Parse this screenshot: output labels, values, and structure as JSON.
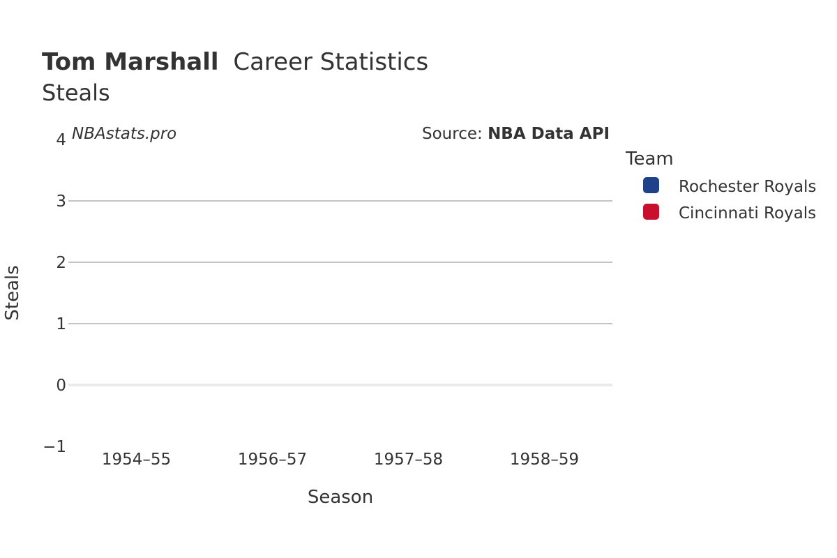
{
  "chart_data": {
    "type": "bar",
    "title_name": "Tom Marshall",
    "title_rest": "Career Statistics",
    "subtitle": "Steals",
    "watermark": "NBAstats.pro",
    "source_prefix": "Source: ",
    "source_name": "NBA Data API",
    "xlabel": "Season",
    "ylabel": "Steals",
    "categories": [
      "1954–55",
      "1956–57",
      "1957–58",
      "1958–59"
    ],
    "yticks": [
      "−1",
      "0",
      "1",
      "2",
      "3",
      "4"
    ],
    "ylim": [
      -1,
      4
    ],
    "grid": true,
    "legend": {
      "title": "Team",
      "placement": "right",
      "items": [
        {
          "name": "Rochester Royals",
          "color": "#1d428a"
        },
        {
          "name": "Cincinnati Royals",
          "color": "#c8102e"
        }
      ]
    },
    "series": [
      {
        "name": "Rochester Royals",
        "values": [
          null,
          null,
          null,
          null
        ]
      },
      {
        "name": "Cincinnati Royals",
        "values": [
          null,
          null,
          null,
          null
        ]
      }
    ]
  }
}
